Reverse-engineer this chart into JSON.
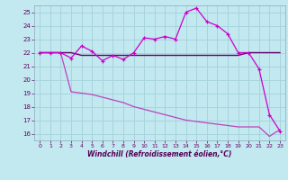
{
  "xlabel": "Windchill (Refroidissement éolien,°C)",
  "bg_color": "#c2e8f0",
  "grid_color": "#a8d4de",
  "ylim": [
    15.5,
    25.5
  ],
  "xlim": [
    -0.5,
    23.5
  ],
  "yticks": [
    16,
    17,
    18,
    19,
    20,
    21,
    22,
    23,
    24,
    25
  ],
  "xticks": [
    0,
    1,
    2,
    3,
    4,
    5,
    6,
    7,
    8,
    9,
    10,
    11,
    12,
    13,
    14,
    15,
    16,
    17,
    18,
    19,
    20,
    21,
    22,
    23
  ],
  "line1_x": [
    0,
    1,
    2,
    3,
    4,
    5,
    6,
    7,
    8,
    9,
    10,
    11,
    12,
    13,
    14,
    15,
    16,
    17,
    18,
    19,
    20,
    21,
    22,
    23
  ],
  "line1_y": [
    22.0,
    22.0,
    22.0,
    21.6,
    22.5,
    22.1,
    21.4,
    21.8,
    21.5,
    22.0,
    23.1,
    23.0,
    23.2,
    23.0,
    25.0,
    25.3,
    24.3,
    24.0,
    23.4,
    22.0,
    22.0,
    20.8,
    17.4,
    16.2
  ],
  "line2_x": [
    0,
    1,
    2,
    3,
    4,
    5,
    6,
    7,
    8,
    9,
    10,
    11,
    12,
    13,
    14,
    15,
    16,
    17,
    18,
    19,
    20,
    21,
    22,
    23
  ],
  "line2_y": [
    22.0,
    22.0,
    22.0,
    22.0,
    21.8,
    21.8,
    21.8,
    21.8,
    21.8,
    21.8,
    21.8,
    21.8,
    21.8,
    21.8,
    21.8,
    21.8,
    21.8,
    21.8,
    21.8,
    21.8,
    22.0,
    22.0,
    22.0,
    22.0
  ],
  "line3_x": [
    0,
    1,
    2,
    3,
    4,
    5,
    6,
    7,
    8,
    9,
    10,
    11,
    12,
    13,
    14,
    15,
    16,
    17,
    18,
    19,
    20,
    21,
    22,
    23
  ],
  "line3_y": [
    22.0,
    22.0,
    22.0,
    19.1,
    19.0,
    18.9,
    18.7,
    18.5,
    18.3,
    18.0,
    17.8,
    17.6,
    17.4,
    17.2,
    17.0,
    16.9,
    16.8,
    16.7,
    16.6,
    16.5,
    16.5,
    16.5,
    15.8,
    16.3
  ],
  "line1_color": "#cc00cc",
  "line2_color": "#660066",
  "line3_color": "#bb44bb",
  "tick_color": "#660066",
  "label_color": "#550055"
}
